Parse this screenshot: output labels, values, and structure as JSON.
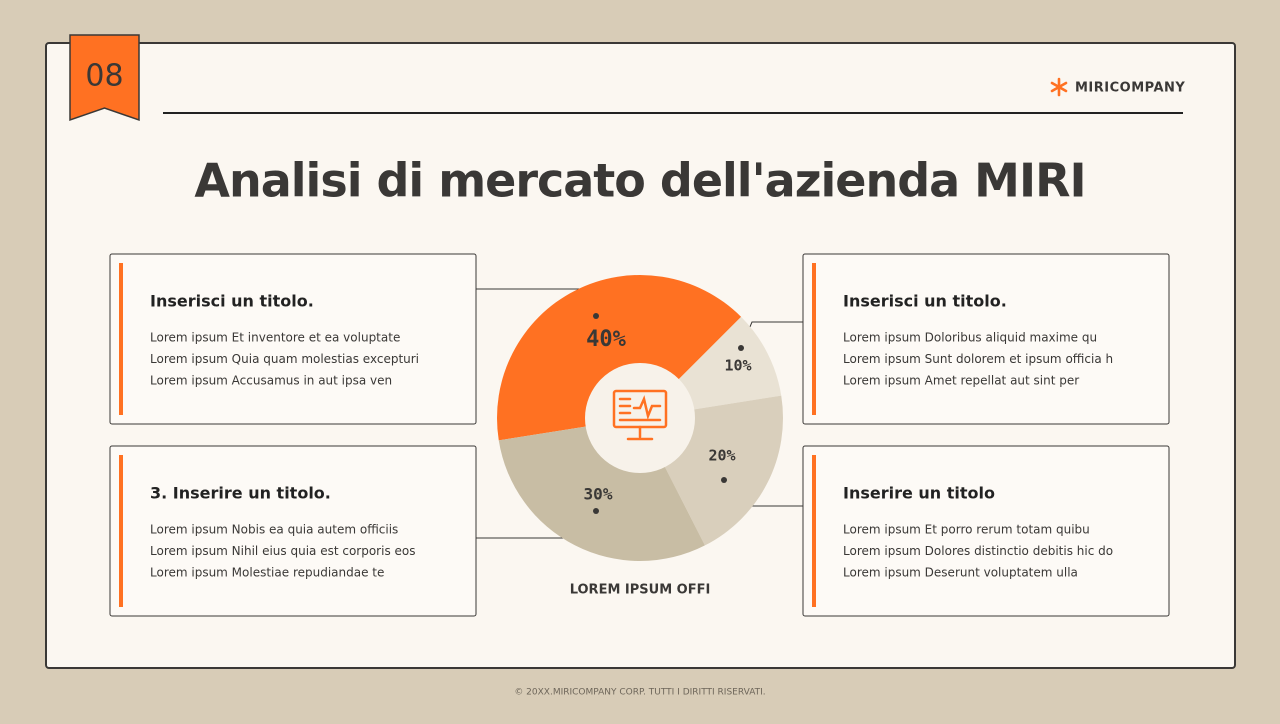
{
  "badge": "08",
  "logo": "MIRICOMPANY",
  "title": "Analisi di mercato dell'azienda MIRI",
  "chart_data": {
    "type": "pie",
    "values": [
      40,
      10,
      20,
      30
    ],
    "value_labels": [
      "40%",
      "10%",
      "20%",
      "30%"
    ],
    "colors": [
      "#FF7122",
      "#E9E2D4",
      "#D9CFBC",
      "#C8BDA4"
    ],
    "caption": "LOREM IPSUM OFFI"
  },
  "boxes": [
    {
      "title": "Inserisci un titolo.",
      "lines": [
        "Lorem ipsum Et inventore et ea voluptate",
        "Lorem ipsum Quia quam molestias excepturi",
        "Lorem ipsum Accusamus in aut ipsa ven"
      ]
    },
    {
      "title": "Inserisci un titolo.",
      "lines": [
        "Lorem ipsum Doloribus aliquid maxime qu",
        "Lorem ipsum Sunt dolorem et ipsum officia h",
        "Lorem ipsum Amet repellat aut sint per"
      ]
    },
    {
      "title": "3. Inserire un titolo.",
      "lines": [
        "Lorem ipsum Nobis ea quia autem officiis",
        "Lorem ipsum Nihil eius quia est corporis eos",
        "Lorem ipsum Molestiae repudiandae te"
      ]
    },
    {
      "title": "Inserire un titolo",
      "lines": [
        "Lorem ipsum Et porro rerum totam quibu",
        "Lorem ipsum Dolores distinctio debitis hic do",
        "Lorem ipsum Deserunt voluptatem ulla"
      ]
    }
  ],
  "footer": "© 20XX.MIRICOMPANY CORP. TUTTI I DIRITTI RISERVATI."
}
